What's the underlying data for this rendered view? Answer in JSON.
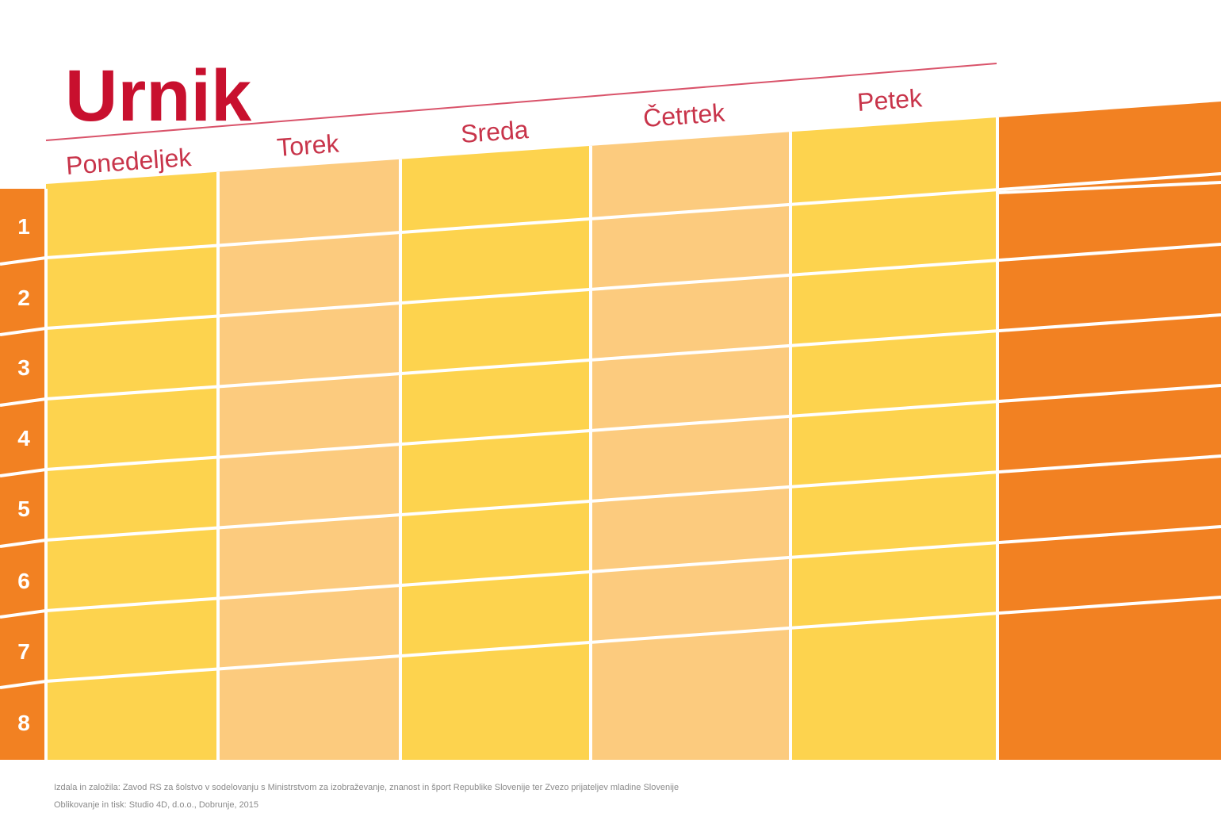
{
  "title": "Urnik",
  "days": [
    "Ponedeljek",
    "Torek",
    "Sreda",
    "Četrtek",
    "Petek"
  ],
  "periods": [
    "1",
    "2",
    "3",
    "4",
    "5",
    "6",
    "7",
    "8"
  ],
  "colors": {
    "title": "#c8102e",
    "day_label": "#c8344a",
    "column_light": "#fdd34e",
    "column_pale": "#fccb7e",
    "orange": "#f28122",
    "line_white": "#ffffff",
    "period_number": "#ffffff"
  },
  "footer": {
    "line1": "Izdala in založila: Zavod RS za šolstvo v sodelovanju s Ministrstvom za izobraževanje, znanost in šport Republike Slovenije ter Zvezo prijateljev mladine Slovenije",
    "line2": "Oblikovanje in tisk: Studio 4D, d.o.o., Dobrunje, 2015"
  }
}
